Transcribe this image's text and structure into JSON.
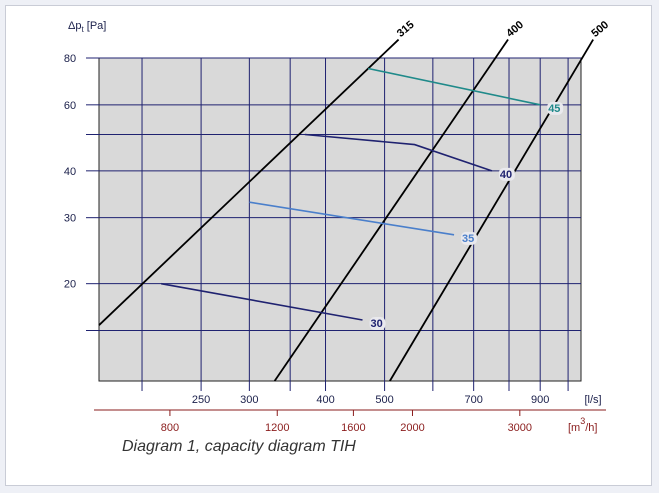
{
  "caption": "Diagram 1, capacity diagram TIH",
  "chart_data": {
    "type": "line",
    "title": "",
    "ylabel": "Δp",
    "ylabel_sub": "t",
    "ylabel_unit": "[Pa]",
    "x_unit": "[l/s]",
    "x2_unit": "[m",
    "x2_unit_sup": "3",
    "x2_unit_end": "/h]",
    "y_scale": "log",
    "x_scale": "log",
    "ylim": [
      11,
      80
    ],
    "xlim": [
      170,
      1050
    ],
    "y_ticks": [
      20,
      30,
      40,
      60,
      80
    ],
    "y_minor": [
      50
    ],
    "x_ticks": [
      250,
      300,
      400,
      500,
      700,
      900
    ],
    "x_minor": [
      200,
      350,
      600,
      800,
      1000
    ],
    "x2_ticks": [
      800,
      1200,
      1600,
      2000,
      3000
    ],
    "grid": true,
    "duct_lines": [
      {
        "name": "315",
        "points": [
          [
            170,
            15.5
          ],
          [
            470,
            75
          ]
        ]
      },
      {
        "name": "400",
        "points": [
          [
            330,
            11
          ],
          [
            760,
            80
          ]
        ]
      },
      {
        "name": "500",
        "points": [
          [
            510,
            11
          ],
          [
            1030,
            75
          ]
        ]
      }
    ],
    "series": [
      {
        "name": "30",
        "color": "#1f2270",
        "points": [
          [
            215,
            20
          ],
          [
            460,
            16
          ]
        ]
      },
      {
        "name": "35",
        "color": "#4a7fcb",
        "points": [
          [
            300,
            33
          ],
          [
            650,
            27
          ]
        ]
      },
      {
        "name": "40",
        "color": "#1f2270",
        "points": [
          [
            370,
            50
          ],
          [
            560,
            47
          ],
          [
            750,
            40
          ]
        ]
      },
      {
        "name": "45",
        "color": "#1f8a8a",
        "points": [
          [
            470,
            75
          ],
          [
            900,
            60
          ]
        ]
      }
    ]
  }
}
